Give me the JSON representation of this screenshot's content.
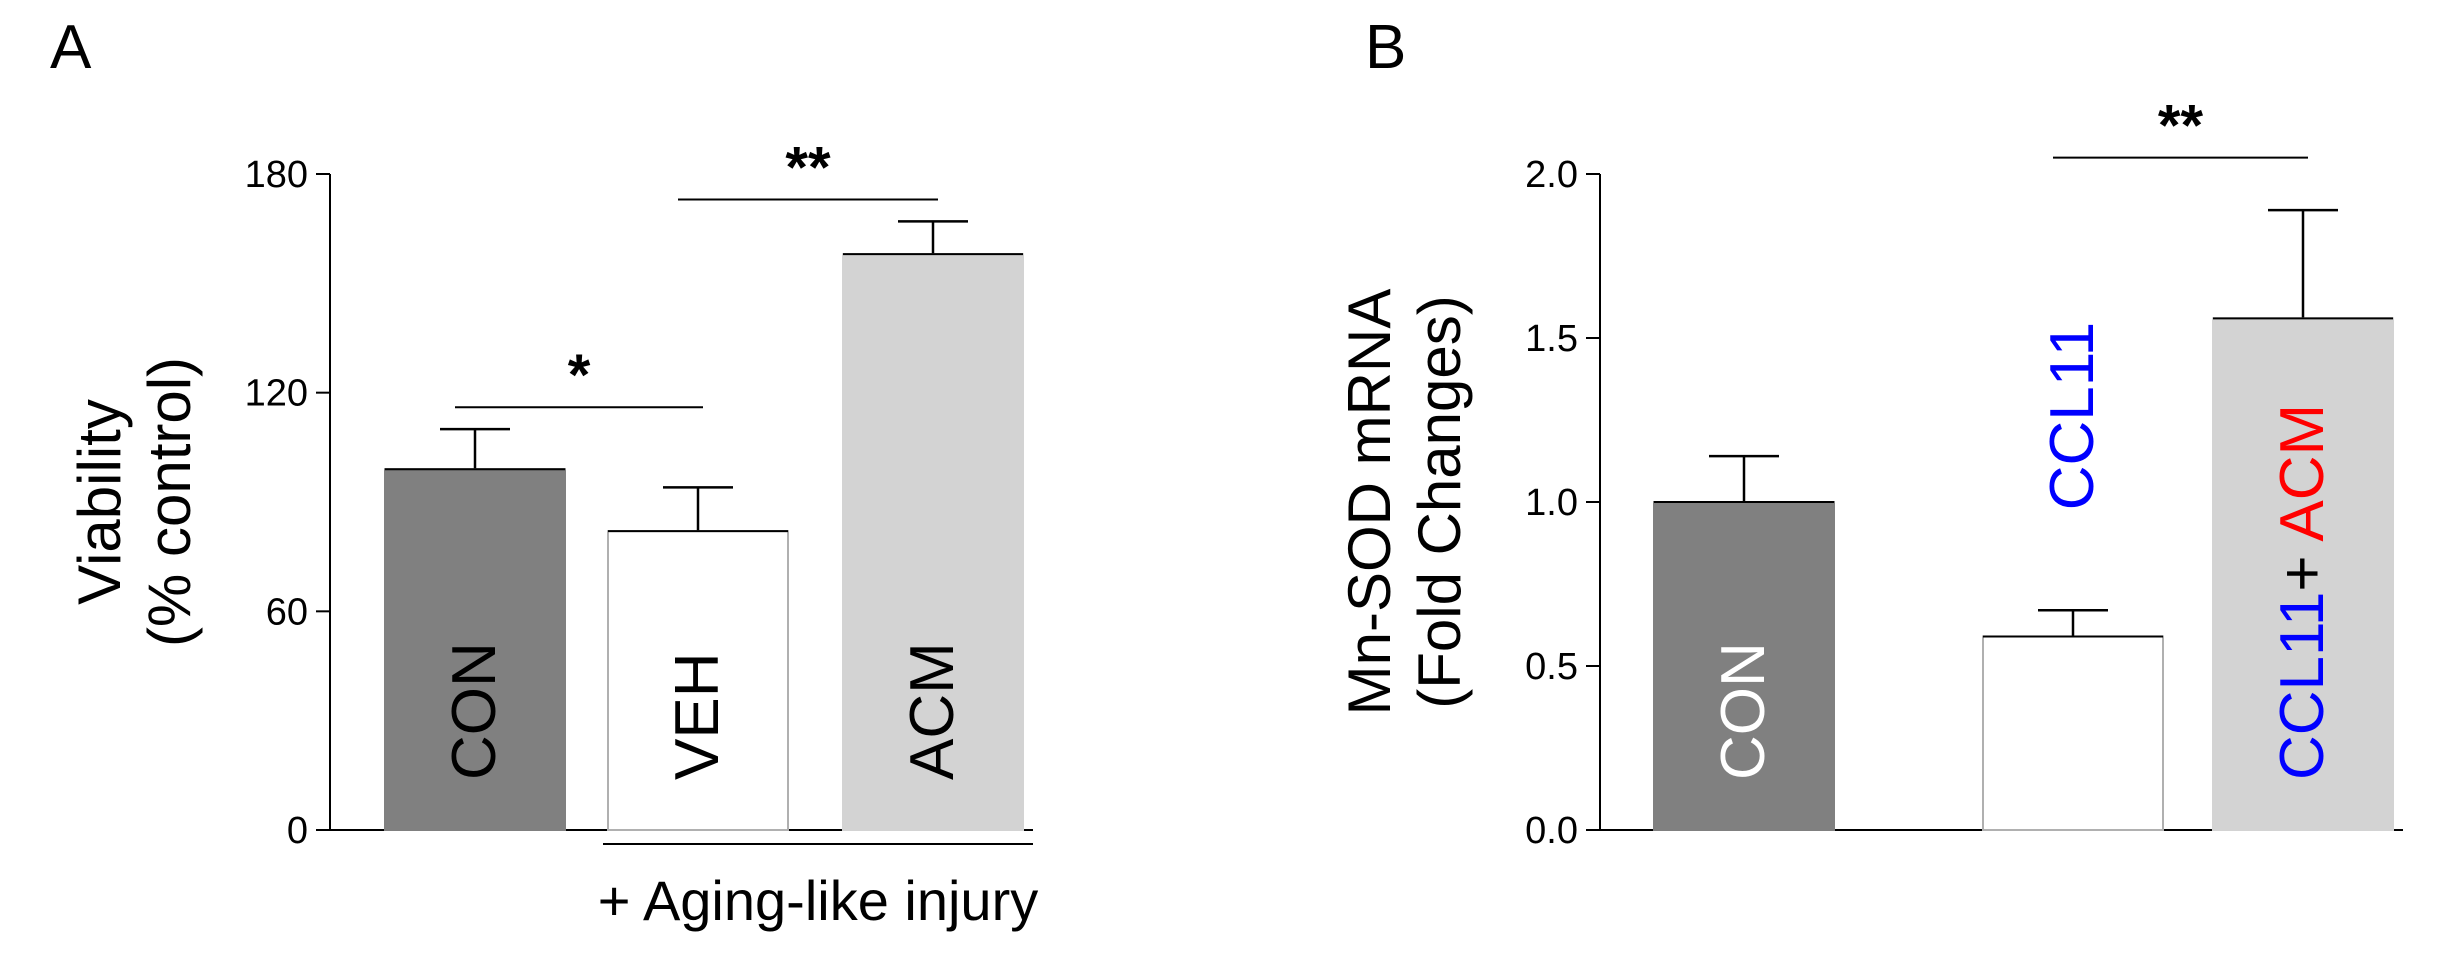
{
  "chart_data": [
    {
      "panel": "A",
      "type": "bar",
      "ylabel_line1": "Viability",
      "ylabel_line2": "(% control)",
      "yticks": [
        "0",
        "60",
        "120",
        "180"
      ],
      "ylim": [
        0,
        180
      ],
      "categories": [
        "CON",
        "VEH",
        "ACM"
      ],
      "values": [
        99,
        82,
        158
      ],
      "errors": [
        11,
        12,
        9
      ],
      "bar_fill": [
        "#808080",
        "#ffffff",
        "#d3d3d3"
      ],
      "bar_label_color": [
        "#ffffff",
        "#000000",
        "#ff0000"
      ],
      "bracket_label": "+ Aging-like injury",
      "significance": [
        {
          "between": [
            0,
            1
          ],
          "label": "*",
          "y": 116
        },
        {
          "between": [
            1,
            2
          ],
          "label": "**",
          "y": 173
        }
      ]
    },
    {
      "panel": "B",
      "type": "bar",
      "ylabel_line1": "Mn-SOD mRNA",
      "ylabel_line2": "(Fold Changes)",
      "yticks": [
        "0.0",
        "0.5",
        "1.0",
        "1.5",
        "2.0"
      ],
      "ylim": [
        0,
        2.0
      ],
      "categories": [
        "CON",
        "CCL11",
        "CCL11 + ACM"
      ],
      "values": [
        1.0,
        0.59,
        1.56
      ],
      "errors": [
        0.14,
        0.08,
        0.33
      ],
      "bar_fill": [
        "#808080",
        "#ffffff",
        "#d3d3d3"
      ],
      "label_parts": [
        [
          {
            "text": "CON",
            "color": "#ffffff"
          }
        ],
        [
          {
            "text": "CCL11",
            "color": "#0000ff"
          }
        ],
        [
          {
            "text": "CCL11",
            "color": "#0000ff"
          },
          {
            "text": "+ ",
            "color": "#000000"
          },
          {
            "text": "ACM",
            "color": "#ff0000"
          }
        ]
      ],
      "significance": [
        {
          "between": [
            1,
            2
          ],
          "label": "**",
          "y": 2.05
        }
      ]
    }
  ]
}
